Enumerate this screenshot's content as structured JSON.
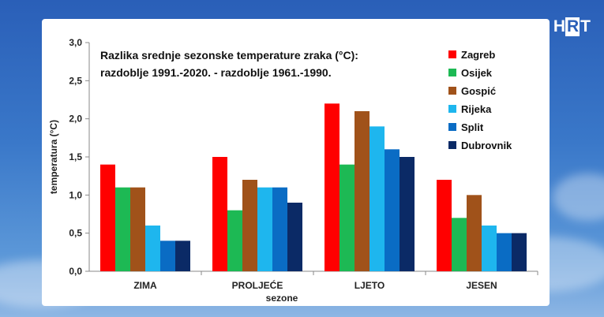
{
  "logo_text": [
    "H",
    "R",
    "T"
  ],
  "chart_data": {
    "type": "bar",
    "title_lines": [
      "Razlika srednje sezonske temperature zraka (°C):",
      "razdoblje 1991.-2020.  -  razdoblje 1961.-1990."
    ],
    "xlabel": "sezone",
    "ylabel": "temperatura (°C)",
    "ylim": [
      0,
      3
    ],
    "yticks": [
      "0,0",
      "0,5",
      "1,0",
      "1,5",
      "2,0",
      "2,5",
      "3,0"
    ],
    "categories": [
      "ZIMA",
      "PROLJEĆE",
      "LJETO",
      "JESEN"
    ],
    "legend_position": "top-right",
    "grid": false,
    "series": [
      {
        "name": "Zagreb",
        "color": "#ff0000",
        "values": [
          1.4,
          1.5,
          2.2,
          1.2
        ]
      },
      {
        "name": "Osijek",
        "color": "#1db954",
        "values": [
          1.1,
          0.8,
          1.4,
          0.7
        ]
      },
      {
        "name": "Gospić",
        "color": "#a0521a",
        "values": [
          1.1,
          1.2,
          2.1,
          1.0
        ]
      },
      {
        "name": "Rijeka",
        "color": "#1eb6ee",
        "values": [
          0.6,
          1.1,
          1.9,
          0.6
        ]
      },
      {
        "name": "Split",
        "color": "#0a6cc4",
        "values": [
          0.4,
          1.1,
          1.6,
          0.5
        ]
      },
      {
        "name": "Dubrovnik",
        "color": "#0b2a66",
        "values": [
          0.4,
          0.9,
          1.5,
          0.5
        ]
      }
    ]
  }
}
